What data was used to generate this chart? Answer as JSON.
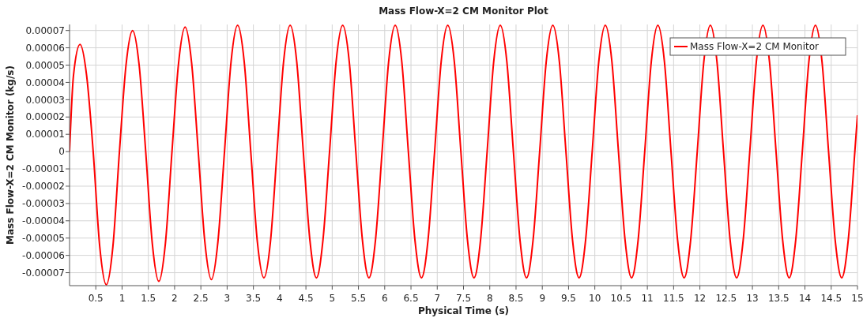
{
  "chart_data": {
    "type": "line",
    "title": "Mass Flow-X=2 CM Monitor Plot",
    "xlabel": "Physical Time (s)",
    "ylabel": "Mass Flow-X=2 CM Monitor (kg/s)",
    "xlim": [
      0,
      15
    ],
    "ylim": [
      -7.75e-05,
      7.35e-05
    ],
    "xticks": [
      0.5,
      1,
      1.5,
      2,
      2.5,
      3,
      3.5,
      4,
      4.5,
      5,
      5.5,
      6,
      6.5,
      7,
      7.5,
      8,
      8.5,
      9,
      9.5,
      10,
      10.5,
      11,
      11.5,
      12,
      12.5,
      13,
      13.5,
      14,
      14.5,
      15
    ],
    "yticks": [
      {
        "value": -7e-05,
        "label": "-0.00007"
      },
      {
        "value": -6e-05,
        "label": "-0.00006"
      },
      {
        "value": -5e-05,
        "label": "-0.00005"
      },
      {
        "value": -4e-05,
        "label": "-0.00004"
      },
      {
        "value": -3e-05,
        "label": "-0.00003"
      },
      {
        "value": -2e-05,
        "label": "-0.00002"
      },
      {
        "value": -1e-05,
        "label": "-0.00001"
      },
      0,
      {
        "value": 1e-05,
        "label": "0.00001"
      },
      {
        "value": 2e-05,
        "label": "0.00002"
      },
      {
        "value": 3e-05,
        "label": "0.00003"
      },
      {
        "value": 4e-05,
        "label": "0.00004"
      },
      {
        "value": 5e-05,
        "label": "0.00005"
      },
      {
        "value": 6e-05,
        "label": "0.00006"
      },
      {
        "value": 7e-05,
        "label": "0.00007"
      }
    ],
    "grid": true,
    "legend": "top right",
    "marker": "none",
    "line_style": "solid",
    "series": [
      {
        "name": "Mass Flow-X=2 CM Monitor",
        "color": "#ff0000",
        "x": [
          0,
          0.075,
          0.2,
          0.325,
          0.45,
          0.575,
          0.7,
          0.825,
          0.95,
          1.075,
          1.2,
          1.325,
          1.45,
          1.575,
          1.7,
          1.825,
          1.95,
          2.075,
          2.2,
          2.325,
          2.45,
          2.575,
          2.7,
          2.825,
          2.95,
          3.075,
          3.2,
          3.325,
          3.45,
          3.575,
          3.7,
          3.825,
          3.95,
          4.075,
          4.2,
          4.325,
          4.45,
          4.575,
          4.7,
          4.825,
          4.95,
          5.075,
          5.2,
          5.325,
          5.45,
          5.575,
          5.7,
          5.825,
          5.95,
          6.075,
          6.2,
          6.325,
          6.45,
          6.575,
          6.7,
          6.825,
          6.95,
          7.075,
          7.2,
          7.325,
          7.45,
          7.575,
          7.7,
          7.825,
          7.95,
          8.075,
          8.2,
          8.325,
          8.45,
          8.575,
          8.7,
          8.825,
          8.95,
          9.075,
          9.2,
          9.325,
          9.45,
          9.575,
          9.7,
          9.825,
          9.95,
          10.075,
          10.2,
          10.325,
          10.45,
          10.575,
          10.7,
          10.825,
          10.95,
          11.075,
          11.2,
          11.325,
          11.45,
          11.575,
          11.7,
          11.825,
          11.95,
          12.075,
          12.2,
          12.325,
          12.45,
          12.575,
          12.7,
          12.825,
          12.95,
          13.075,
          13.2,
          13.325,
          13.45,
          13.575,
          13.7,
          13.825,
          13.95,
          14.075,
          14.2,
          14.325,
          14.45,
          14.575,
          14.7,
          14.825,
          14.95,
          15
        ],
        "values": [
          0,
          4.4e-05,
          6.2e-05,
          4.4e-05,
          0,
          -5.5e-05,
          -7.7e-05,
          -5.5e-05,
          0,
          5e-05,
          7e-05,
          5e-05,
          0,
          -5.3e-05,
          -7.5e-05,
          -5.3e-05,
          0,
          5.1e-05,
          7.2e-05,
          5.1e-05,
          0,
          -5.2e-05,
          -7.4e-05,
          -5.2e-05,
          0,
          5.2e-05,
          7.3e-05,
          5.2e-05,
          0,
          -5.2e-05,
          -7.3e-05,
          -5.2e-05,
          0,
          5.2e-05,
          7.3e-05,
          5.2e-05,
          0,
          -5.1e-05,
          -7.3e-05,
          -5.1e-05,
          0,
          5.2e-05,
          7.3e-05,
          5.2e-05,
          0,
          -5.1e-05,
          -7.3e-05,
          -5.1e-05,
          0,
          5.2e-05,
          7.3e-05,
          5.2e-05,
          0,
          -5.1e-05,
          -7.3e-05,
          -5.1e-05,
          0,
          5.2e-05,
          7.3e-05,
          5.2e-05,
          0,
          -5.1e-05,
          -7.3e-05,
          -5.1e-05,
          0,
          5.2e-05,
          7.3e-05,
          5.2e-05,
          0,
          -5.1e-05,
          -7.3e-05,
          -5.1e-05,
          0,
          5.2e-05,
          7.3e-05,
          5.2e-05,
          0,
          -5.1e-05,
          -7.3e-05,
          -5.1e-05,
          0,
          5.2e-05,
          7.3e-05,
          5.2e-05,
          0,
          -5.1e-05,
          -7.3e-05,
          -5.1e-05,
          0,
          5.2e-05,
          7.3e-05,
          5.2e-05,
          0,
          -5.1e-05,
          -7.3e-05,
          -5.1e-05,
          0,
          5.2e-05,
          7.3e-05,
          5.2e-05,
          0,
          -5.1e-05,
          -7.3e-05,
          -5.1e-05,
          0,
          5.2e-05,
          7.3e-05,
          5.2e-05,
          0,
          -5.1e-05,
          -7.3e-05,
          -5.1e-05,
          0,
          5.2e-05,
          7.3e-05,
          5.2e-05,
          0,
          -5.1e-05,
          -7.3e-05,
          -5.1e-05,
          0,
          2.1e-05
        ]
      }
    ]
  }
}
